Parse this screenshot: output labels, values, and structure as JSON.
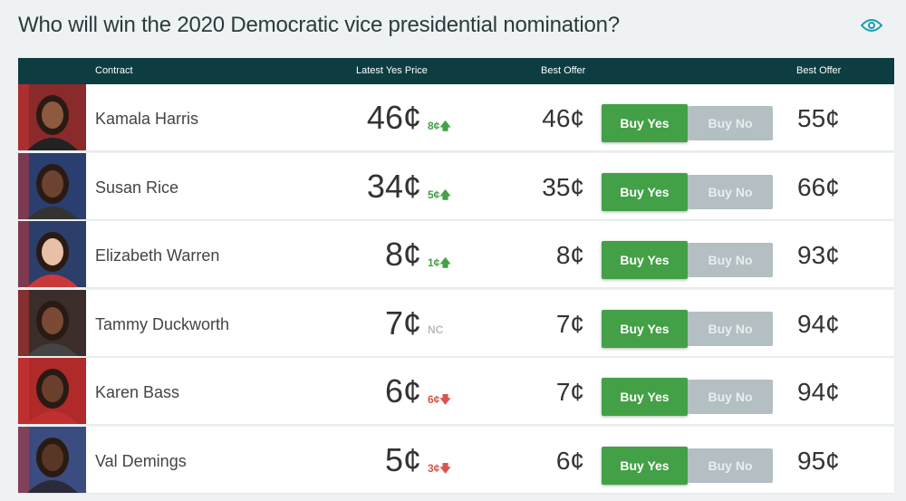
{
  "title": "Who will win the 2020 Democratic vice presidential nomination?",
  "header": {
    "contract": "Contract",
    "latest": "Latest Yes Price",
    "best_offer_yes": "Best Offer",
    "best_offer_no": "Best Offer"
  },
  "colors": {
    "header_bg": "#0d3d40",
    "buy_yes": "#43a047",
    "buy_no": "#b3bfc2",
    "up": "#43a047",
    "down": "#d9534f",
    "nc": "#bbbbbb"
  },
  "rows": [
    {
      "name": "Kamala Harris",
      "price": "46¢",
      "change": "8¢",
      "dir": "up",
      "yes_offer": "46¢",
      "buy_yes": "Buy Yes",
      "buy_no": "Buy No",
      "no_offer": "55¢"
    },
    {
      "name": "Susan Rice",
      "price": "34¢",
      "change": "5¢",
      "dir": "up",
      "yes_offer": "35¢",
      "buy_yes": "Buy Yes",
      "buy_no": "Buy No",
      "no_offer": "66¢"
    },
    {
      "name": "Elizabeth Warren",
      "price": "8¢",
      "change": "1¢",
      "dir": "up",
      "yes_offer": "8¢",
      "buy_yes": "Buy Yes",
      "buy_no": "Buy No",
      "no_offer": "93¢"
    },
    {
      "name": "Tammy Duckworth",
      "price": "7¢",
      "change": "NC",
      "dir": "none",
      "yes_offer": "7¢",
      "buy_yes": "Buy Yes",
      "buy_no": "Buy No",
      "no_offer": "94¢"
    },
    {
      "name": "Karen Bass",
      "price": "6¢",
      "change": "6¢",
      "dir": "down",
      "yes_offer": "7¢",
      "buy_yes": "Buy Yes",
      "buy_no": "Buy No",
      "no_offer": "94¢"
    },
    {
      "name": "Val Demings",
      "price": "5¢",
      "change": "3¢",
      "dir": "down",
      "yes_offer": "6¢",
      "buy_yes": "Buy Yes",
      "buy_no": "Buy No",
      "no_offer": "95¢"
    }
  ]
}
